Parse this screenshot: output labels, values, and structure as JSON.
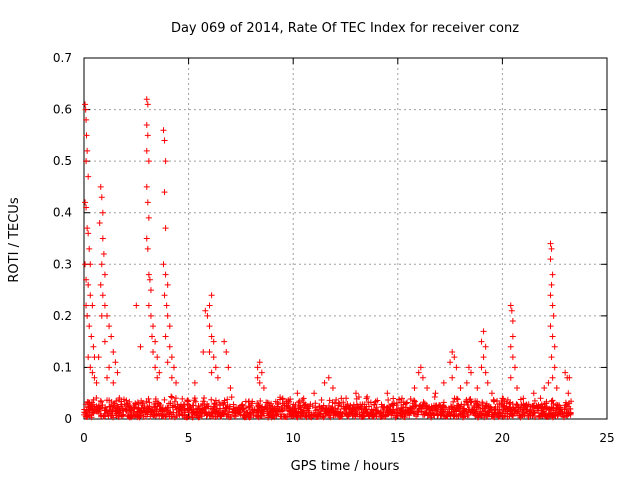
{
  "chart_data": {
    "type": "scatter",
    "title": "Day 069 of 2014, Rate Of TEC Index for receiver conz",
    "xlabel": "GPS time / hours",
    "ylabel": "ROTI / TECUs",
    "xlim": [
      0,
      25
    ],
    "ylim": [
      0,
      0.7
    ],
    "xticks": [
      0,
      5,
      10,
      15,
      20,
      25
    ],
    "yticks": [
      0,
      0.1,
      0.2,
      0.3,
      0.4,
      0.5,
      0.6,
      0.7
    ],
    "xtick_labels": [
      "0",
      "5",
      "10",
      "15",
      "20",
      "25"
    ],
    "ytick_labels": [
      "0",
      "0.1",
      "0.2",
      "0.3",
      "0.4",
      "0.5",
      "0.6",
      "0.7"
    ],
    "grid": true,
    "marker": "+",
    "color": "#ff0000",
    "series": [
      {
        "name": "ROTI",
        "points": [
          [
            0.05,
            0.61
          ],
          [
            0.08,
            0.6
          ],
          [
            0.1,
            0.58
          ],
          [
            0.12,
            0.55
          ],
          [
            0.15,
            0.52
          ],
          [
            0.1,
            0.5
          ],
          [
            0.2,
            0.47
          ],
          [
            0.05,
            0.42
          ],
          [
            0.1,
            0.41
          ],
          [
            0.15,
            0.37
          ],
          [
            0.2,
            0.36
          ],
          [
            0.25,
            0.33
          ],
          [
            0.3,
            0.3
          ],
          [
            0.05,
            0.3
          ],
          [
            0.1,
            0.27
          ],
          [
            0.2,
            0.26
          ],
          [
            0.3,
            0.24
          ],
          [
            0.4,
            0.22
          ],
          [
            0.1,
            0.22
          ],
          [
            0.15,
            0.2
          ],
          [
            0.25,
            0.18
          ],
          [
            0.35,
            0.16
          ],
          [
            0.45,
            0.14
          ],
          [
            0.5,
            0.12
          ],
          [
            0.2,
            0.12
          ],
          [
            0.3,
            0.1
          ],
          [
            0.4,
            0.09
          ],
          [
            0.5,
            0.08
          ],
          [
            0.6,
            0.07
          ],
          [
            0.7,
            0.12
          ],
          [
            0.8,
            0.45
          ],
          [
            0.85,
            0.43
          ],
          [
            0.9,
            0.4
          ],
          [
            0.75,
            0.38
          ],
          [
            0.9,
            0.35
          ],
          [
            0.95,
            0.32
          ],
          [
            0.85,
            0.3
          ],
          [
            1.0,
            0.28
          ],
          [
            0.8,
            0.26
          ],
          [
            0.9,
            0.24
          ],
          [
            1.0,
            0.22
          ],
          [
            1.1,
            0.2
          ],
          [
            0.85,
            0.2
          ],
          [
            1.2,
            0.18
          ],
          [
            1.3,
            0.16
          ],
          [
            1.0,
            0.15
          ],
          [
            1.4,
            0.13
          ],
          [
            1.5,
            0.11
          ],
          [
            1.2,
            0.1
          ],
          [
            1.6,
            0.09
          ],
          [
            1.1,
            0.08
          ],
          [
            1.4,
            0.07
          ],
          [
            2.5,
            0.22
          ],
          [
            2.7,
            0.14
          ],
          [
            3.0,
            0.62
          ],
          [
            3.05,
            0.61
          ],
          [
            3.0,
            0.57
          ],
          [
            3.05,
            0.55
          ],
          [
            3.0,
            0.52
          ],
          [
            3.1,
            0.5
          ],
          [
            3.0,
            0.45
          ],
          [
            3.05,
            0.42
          ],
          [
            3.1,
            0.39
          ],
          [
            3.0,
            0.35
          ],
          [
            3.05,
            0.33
          ],
          [
            3.1,
            0.28
          ],
          [
            3.15,
            0.27
          ],
          [
            3.2,
            0.25
          ],
          [
            3.1,
            0.22
          ],
          [
            3.2,
            0.2
          ],
          [
            3.3,
            0.18
          ],
          [
            3.25,
            0.16
          ],
          [
            3.4,
            0.15
          ],
          [
            3.3,
            0.13
          ],
          [
            3.5,
            0.12
          ],
          [
            3.4,
            0.1
          ],
          [
            3.6,
            0.09
          ],
          [
            3.5,
            0.08
          ],
          [
            3.8,
            0.56
          ],
          [
            3.85,
            0.54
          ],
          [
            3.9,
            0.5
          ],
          [
            3.85,
            0.44
          ],
          [
            3.9,
            0.37
          ],
          [
            3.8,
            0.3
          ],
          [
            3.9,
            0.28
          ],
          [
            4.0,
            0.26
          ],
          [
            3.85,
            0.24
          ],
          [
            3.95,
            0.22
          ],
          [
            4.0,
            0.2
          ],
          [
            4.1,
            0.18
          ],
          [
            3.9,
            0.16
          ],
          [
            4.1,
            0.14
          ],
          [
            4.2,
            0.12
          ],
          [
            4.0,
            0.11
          ],
          [
            4.3,
            0.1
          ],
          [
            4.2,
            0.08
          ],
          [
            4.4,
            0.07
          ],
          [
            5.3,
            0.07
          ],
          [
            5.7,
            0.13
          ],
          [
            5.8,
            0.21
          ],
          [
            5.9,
            0.2
          ],
          [
            6.0,
            0.22
          ],
          [
            6.1,
            0.24
          ],
          [
            6.0,
            0.18
          ],
          [
            6.1,
            0.16
          ],
          [
            6.2,
            0.15
          ],
          [
            6.0,
            0.13
          ],
          [
            6.2,
            0.12
          ],
          [
            6.3,
            0.1
          ],
          [
            6.4,
            0.08
          ],
          [
            6.1,
            0.09
          ],
          [
            6.7,
            0.15
          ],
          [
            6.8,
            0.13
          ],
          [
            6.9,
            0.1
          ],
          [
            7.0,
            0.06
          ],
          [
            8.3,
            0.1
          ],
          [
            8.4,
            0.11
          ],
          [
            8.5,
            0.09
          ],
          [
            8.4,
            0.07
          ],
          [
            8.6,
            0.06
          ],
          [
            8.3,
            0.08
          ],
          [
            9.5,
            0.04
          ],
          [
            10.2,
            0.05
          ],
          [
            10.5,
            0.04
          ],
          [
            11.0,
            0.05
          ],
          [
            11.5,
            0.07
          ],
          [
            11.7,
            0.08
          ],
          [
            11.9,
            0.06
          ],
          [
            12.3,
            0.04
          ],
          [
            13.0,
            0.05
          ],
          [
            13.5,
            0.04
          ],
          [
            14.5,
            0.05
          ],
          [
            15.2,
            0.04
          ],
          [
            15.8,
            0.06
          ],
          [
            16.0,
            0.09
          ],
          [
            16.1,
            0.1
          ],
          [
            16.2,
            0.08
          ],
          [
            16.4,
            0.06
          ],
          [
            16.8,
            0.05
          ],
          [
            17.2,
            0.07
          ],
          [
            17.5,
            0.11
          ],
          [
            17.6,
            0.13
          ],
          [
            17.7,
            0.12
          ],
          [
            17.8,
            0.1
          ],
          [
            17.6,
            0.08
          ],
          [
            18.0,
            0.06
          ],
          [
            18.4,
            0.1
          ],
          [
            18.5,
            0.09
          ],
          [
            18.3,
            0.07
          ],
          [
            18.8,
            0.06
          ],
          [
            19.0,
            0.15
          ],
          [
            19.1,
            0.17
          ],
          [
            19.2,
            0.14
          ],
          [
            19.1,
            0.12
          ],
          [
            19.0,
            0.1
          ],
          [
            19.2,
            0.09
          ],
          [
            19.3,
            0.07
          ],
          [
            19.5,
            0.05
          ],
          [
            20.0,
            0.04
          ],
          [
            20.4,
            0.22
          ],
          [
            20.45,
            0.21
          ],
          [
            20.5,
            0.19
          ],
          [
            20.5,
            0.16
          ],
          [
            20.4,
            0.14
          ],
          [
            20.5,
            0.12
          ],
          [
            20.6,
            0.1
          ],
          [
            20.4,
            0.08
          ],
          [
            20.7,
            0.06
          ],
          [
            21.0,
            0.04
          ],
          [
            21.5,
            0.05
          ],
          [
            22.0,
            0.06
          ],
          [
            22.2,
            0.07
          ],
          [
            22.3,
            0.34
          ],
          [
            22.35,
            0.33
          ],
          [
            22.3,
            0.31
          ],
          [
            22.4,
            0.28
          ],
          [
            22.35,
            0.26
          ],
          [
            22.3,
            0.24
          ],
          [
            22.4,
            0.22
          ],
          [
            22.45,
            0.2
          ],
          [
            22.3,
            0.18
          ],
          [
            22.4,
            0.16
          ],
          [
            22.5,
            0.14
          ],
          [
            22.35,
            0.12
          ],
          [
            22.5,
            0.1
          ],
          [
            22.4,
            0.08
          ],
          [
            22.6,
            0.06
          ],
          [
            23.0,
            0.09
          ],
          [
            23.1,
            0.08
          ],
          [
            23.2,
            0.08
          ],
          [
            23.15,
            0.05
          ]
        ],
        "baseline": {
          "x_start": 0.0,
          "x_end": 23.3,
          "step": 0.05,
          "y_min": 0.003,
          "y_max": 0.045,
          "seed": 1234
        }
      }
    ]
  }
}
